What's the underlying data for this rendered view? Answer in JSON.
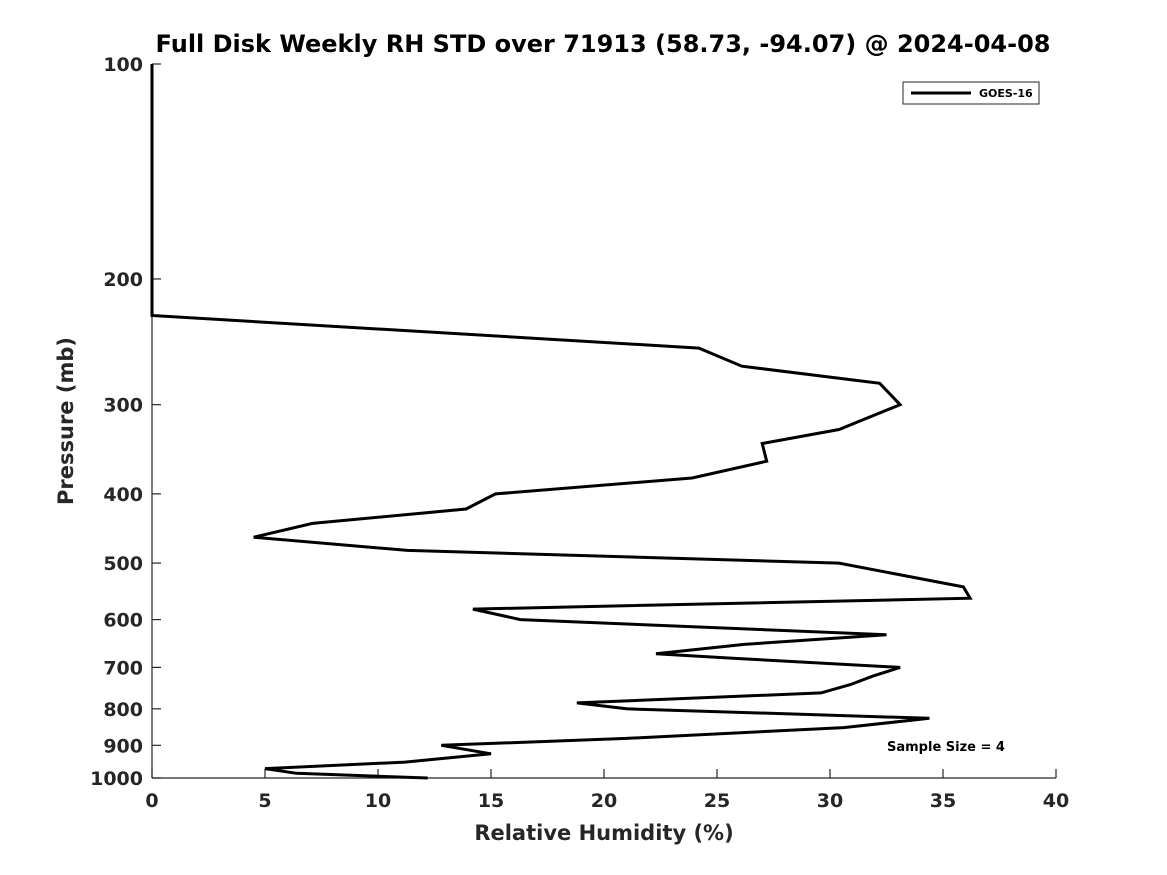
{
  "chart_data": {
    "type": "line",
    "title": "Full Disk Weekly RH STD over 71913 (58.73, -94.07) @ 2024-04-08",
    "xlabel": "Relative Humidity (%)",
    "ylabel": "Pressure (mb)",
    "xlim": [
      0,
      40
    ],
    "ylim": [
      100,
      1000
    ],
    "y_scale": "log",
    "y_reversed": true,
    "grid": false,
    "legend_position": "top-right",
    "x_ticks": [
      "0",
      "5",
      "10",
      "15",
      "20",
      "25",
      "30",
      "35",
      "40"
    ],
    "y_ticks": [
      "100",
      "200",
      "300",
      "400",
      "500",
      "600",
      "700",
      "800",
      "900",
      "1000"
    ],
    "annotation": "Sample Size = 4",
    "series": [
      {
        "name": "GOES-16",
        "color": "#000000",
        "points": [
          [
            0,
            100
          ],
          [
            0,
            150
          ],
          [
            0,
            200
          ],
          [
            0,
            225
          ],
          [
            24.2,
            250
          ],
          [
            26.1,
            265
          ],
          [
            32.2,
            280
          ],
          [
            33.1,
            300
          ],
          [
            30.4,
            325
          ],
          [
            27.0,
            340
          ],
          [
            27.2,
            360
          ],
          [
            23.9,
            380
          ],
          [
            15.2,
            400
          ],
          [
            13.9,
            420
          ],
          [
            7.1,
            440
          ],
          [
            4.5,
            460
          ],
          [
            11.3,
            480
          ],
          [
            30.4,
            500
          ],
          [
            35.9,
            540
          ],
          [
            36.2,
            560
          ],
          [
            14.2,
            580
          ],
          [
            16.3,
            600
          ],
          [
            32.5,
            630
          ],
          [
            26.2,
            650
          ],
          [
            22.3,
            670
          ],
          [
            25.8,
            680
          ],
          [
            33.1,
            700
          ],
          [
            31.9,
            720
          ],
          [
            30.9,
            740
          ],
          [
            29.6,
            760
          ],
          [
            18.8,
            785
          ],
          [
            21.0,
            800
          ],
          [
            34.4,
            825
          ],
          [
            30.6,
            850
          ],
          [
            21.0,
            880
          ],
          [
            12.8,
            900
          ],
          [
            15.0,
            925
          ],
          [
            11.2,
            950
          ],
          [
            5.0,
            970
          ],
          [
            6.4,
            985
          ],
          [
            12.2,
            1000
          ]
        ]
      }
    ]
  }
}
